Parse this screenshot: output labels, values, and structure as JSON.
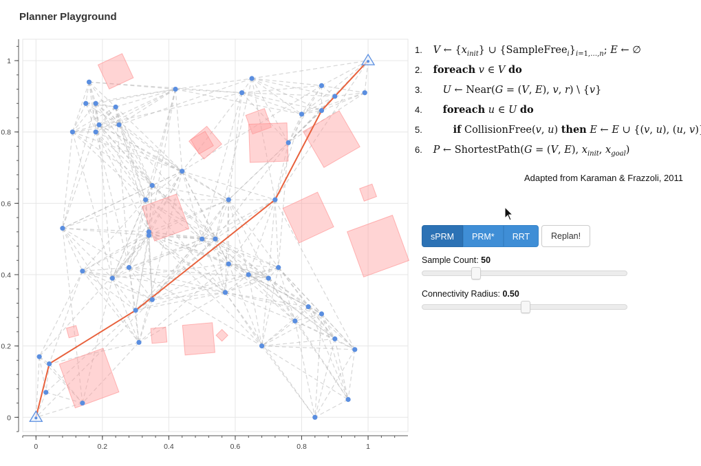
{
  "app": {
    "title": "Planner Playground"
  },
  "algorithm": {
    "lines": [
      {
        "num": "1."
      },
      {
        "num": "2."
      },
      {
        "num": "3."
      },
      {
        "num": "4."
      },
      {
        "num": "5."
      },
      {
        "num": "6."
      }
    ],
    "citation": "Adapted from Karaman & Frazzoli, 2011"
  },
  "controls": {
    "planners": [
      {
        "label": "sPRM",
        "active": true
      },
      {
        "label": "PRM*",
        "active": false
      },
      {
        "label": "RRT",
        "active": false
      }
    ],
    "replan_label": "Replan!",
    "sample_count": {
      "label": "Sample Count:",
      "value": "50",
      "fraction": 0.25
    },
    "connectivity_radius": {
      "label": "Connectivity Radius:",
      "value": "0.50",
      "fraction": 0.5
    }
  },
  "colors": {
    "path": "#e8613c",
    "node": "#5a8ee0",
    "obstacle_fill": "#ff9f9f",
    "edge": "#b5b5b5",
    "button": "#3f8ed6"
  },
  "chart_data": {
    "type": "scatter",
    "xlim": [
      -0.04,
      1.12
    ],
    "ylim": [
      -0.04,
      1.06
    ],
    "x_ticks": [
      "0",
      "0.2",
      "0.4",
      "0.6",
      "0.8",
      "1"
    ],
    "y_ticks": [
      "0",
      "0.2",
      "0.4",
      "0.6",
      "0.8",
      "1"
    ],
    "grid": true,
    "start": [
      0,
      0
    ],
    "goal": [
      1,
      1
    ],
    "nodes": [
      [
        0.16,
        0.94
      ],
      [
        0.15,
        0.88
      ],
      [
        0.18,
        0.88
      ],
      [
        0.24,
        0.87
      ],
      [
        0.42,
        0.92
      ],
      [
        0.62,
        0.91
      ],
      [
        0.65,
        0.95
      ],
      [
        0.86,
        0.93
      ],
      [
        0.9,
        0.9
      ],
      [
        0.99,
        0.91
      ],
      [
        0.19,
        0.82
      ],
      [
        0.25,
        0.82
      ],
      [
        0.11,
        0.8
      ],
      [
        0.18,
        0.8
      ],
      [
        0.8,
        0.85
      ],
      [
        0.86,
        0.86
      ],
      [
        0.76,
        0.77
      ],
      [
        0.44,
        0.69
      ],
      [
        0.35,
        0.65
      ],
      [
        0.33,
        0.61
      ],
      [
        0.58,
        0.61
      ],
      [
        0.72,
        0.61
      ],
      [
        0.08,
        0.53
      ],
      [
        0.34,
        0.52
      ],
      [
        0.34,
        0.51
      ],
      [
        0.5,
        0.5
      ],
      [
        0.54,
        0.5
      ],
      [
        0.58,
        0.43
      ],
      [
        0.28,
        0.42
      ],
      [
        0.14,
        0.41
      ],
      [
        0.64,
        0.4
      ],
      [
        0.73,
        0.42
      ],
      [
        0.23,
        0.39
      ],
      [
        0.7,
        0.39
      ],
      [
        0.57,
        0.35
      ],
      [
        0.35,
        0.33
      ],
      [
        0.3,
        0.3
      ],
      [
        0.82,
        0.31
      ],
      [
        0.86,
        0.29
      ],
      [
        0.78,
        0.27
      ],
      [
        0.9,
        0.22
      ],
      [
        0.96,
        0.19
      ],
      [
        0.31,
        0.21
      ],
      [
        0.68,
        0.2
      ],
      [
        0.01,
        0.17
      ],
      [
        0.04,
        0.15
      ],
      [
        0.03,
        0.07
      ],
      [
        0.14,
        0.04
      ],
      [
        0.94,
        0.05
      ],
      [
        0.84,
        0.0
      ]
    ],
    "path": [
      [
        0,
        0
      ],
      [
        0.04,
        0.15
      ],
      [
        0.3,
        0.3
      ],
      [
        0.72,
        0.61
      ],
      [
        0.86,
        0.86
      ],
      [
        1,
        1
      ]
    ],
    "obstacles": [
      {
        "center": [
          0.24,
          0.97
        ],
        "size": 0.08,
        "angle": 25
      },
      {
        "center": [
          0.51,
          0.77
        ],
        "size": 0.07,
        "angle": 40
      },
      {
        "center": [
          0.5,
          0.77
        ],
        "size": 0.05,
        "angle": 30
      },
      {
        "center": [
          0.67,
          0.83
        ],
        "size": 0.06,
        "angle": 20
      },
      {
        "center": [
          0.7,
          0.77
        ],
        "size": 0.115,
        "angle": 2
      },
      {
        "center": [
          0.89,
          0.78
        ],
        "size": 0.125,
        "angle": 30
      },
      {
        "center": [
          1.0,
          0.63
        ],
        "size": 0.04,
        "angle": 20
      },
      {
        "center": [
          0.39,
          0.56
        ],
        "size": 0.11,
        "angle": 20
      },
      {
        "center": [
          0.82,
          0.56
        ],
        "size": 0.115,
        "angle": 25
      },
      {
        "center": [
          1.03,
          0.48
        ],
        "size": 0.145,
        "angle": 20
      },
      {
        "center": [
          0.11,
          0.24
        ],
        "size": 0.03,
        "angle": 15
      },
      {
        "center": [
          0.37,
          0.23
        ],
        "size": 0.045,
        "angle": 5
      },
      {
        "center": [
          0.49,
          0.22
        ],
        "size": 0.09,
        "angle": 5
      },
      {
        "center": [
          0.56,
          0.23
        ],
        "size": 0.025,
        "angle": 45
      },
      {
        "center": [
          0.16,
          0.11
        ],
        "size": 0.14,
        "angle": 20
      }
    ]
  }
}
